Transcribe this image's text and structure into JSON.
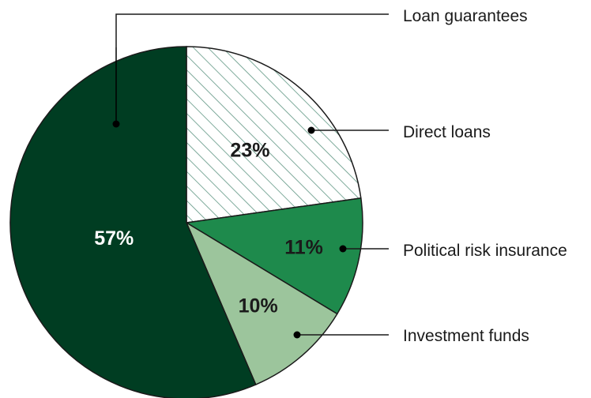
{
  "chart_data": {
    "type": "pie",
    "title": "",
    "slices": [
      {
        "label": "Loan guarantees",
        "value": 57,
        "display": "57%",
        "color": "#003d22",
        "pattern": "none",
        "label_color": "#ffffff"
      },
      {
        "label": "Direct loans",
        "value": 23,
        "display": "23%",
        "color": "#ffffff",
        "pattern": "diagonal-hatch",
        "hatch_color": "#5f9683",
        "label_color": "#1a1a1a"
      },
      {
        "label": "Political risk insurance",
        "value": 11,
        "display": "11%",
        "color": "#1e8a4c",
        "pattern": "none",
        "label_color": "#1a1a1a"
      },
      {
        "label": "Investment funds",
        "value": 10,
        "display": "10%",
        "color": "#9cc59c",
        "pattern": "none",
        "label_color": "#1a1a1a"
      }
    ],
    "legend_placement": "right"
  }
}
